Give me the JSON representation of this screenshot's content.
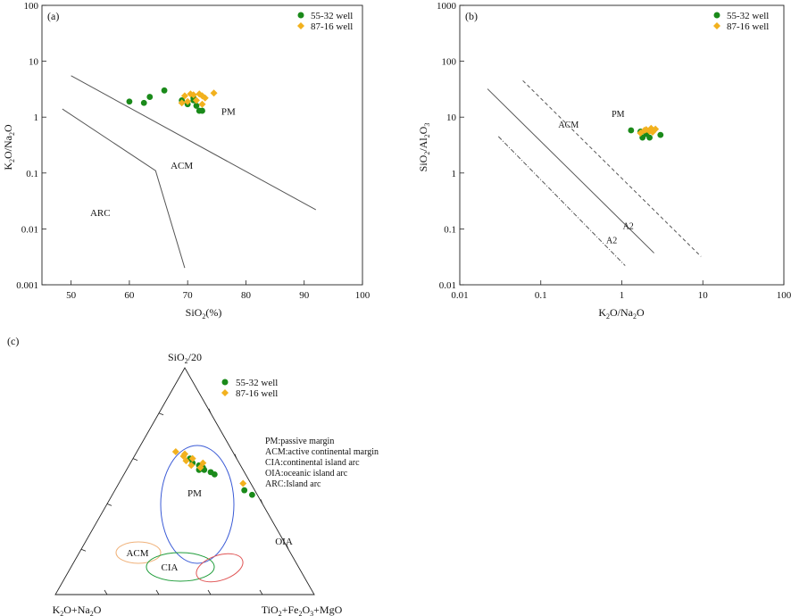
{
  "chart_data": [
    {
      "panel": "(a)",
      "type": "scatter",
      "xlabel": "SiO2(%)",
      "ylabel": "K2O/Na2O",
      "xlim": [
        45,
        100
      ],
      "ylim": [
        0.001,
        100
      ],
      "yscale": "log",
      "x_ticks": [
        "50",
        "60",
        "70",
        "80",
        "90",
        "100"
      ],
      "y_ticks": [
        "0.001",
        "0.01",
        "0.1",
        "1",
        "10",
        "100"
      ],
      "legend": [
        "55-32 well",
        "87-16 well"
      ],
      "legend_position": "top-right",
      "region_labels": [
        {
          "text": "PM",
          "x": 77,
          "y": 1.1
        },
        {
          "text": "ACM",
          "x": 69,
          "y": 0.12
        },
        {
          "text": "ARC",
          "x": 55,
          "y": 0.017
        }
      ],
      "boundaries": [
        [
          [
            50,
            5.5
          ],
          [
            92,
            0.022
          ]
        ],
        [
          [
            48.5,
            1.4
          ],
          [
            64.5,
            0.11
          ],
          [
            69.5,
            0.002
          ]
        ]
      ],
      "series": [
        {
          "name": "55-32 well",
          "color": "#1a8a1a",
          "marker": "circle",
          "points": [
            [
              60,
              1.9
            ],
            [
              62.5,
              1.8
            ],
            [
              63.5,
              2.3
            ],
            [
              66,
              3.0
            ],
            [
              69,
              2.0
            ],
            [
              70,
              1.7
            ],
            [
              71,
              2.2
            ],
            [
              71.5,
              1.6
            ],
            [
              72,
              1.3
            ],
            [
              72.5,
              1.3
            ],
            [
              71,
              2.0
            ]
          ]
        },
        {
          "name": "87-16 well",
          "color": "#f2b11e",
          "marker": "diamond",
          "points": [
            [
              69,
              1.8
            ],
            [
              69.5,
              2.4
            ],
            [
              70.5,
              2.6
            ],
            [
              71,
              2.5
            ],
            [
              71.5,
              2.0
            ],
            [
              72,
              2.6
            ],
            [
              72.5,
              2.4
            ],
            [
              73,
              2.2
            ],
            [
              72.5,
              1.7
            ],
            [
              74.5,
              2.7
            ],
            [
              70,
              1.9
            ]
          ]
        }
      ]
    },
    {
      "panel": "(b)",
      "type": "scatter",
      "xlabel": "K2O/Na2O",
      "ylabel": "SiO2/Al2O3",
      "xlim": [
        0.01,
        100
      ],
      "ylim": [
        0.01,
        1000
      ],
      "xscale": "log",
      "yscale": "log",
      "x_ticks": [
        "0.01",
        "0.1",
        "1",
        "10",
        "100"
      ],
      "y_ticks": [
        "0.01",
        "0.1",
        "1",
        "10",
        "100",
        "1000"
      ],
      "legend": [
        "55-32 well",
        "87-16 well"
      ],
      "legend_position": "top-right",
      "region_labels": [
        {
          "text": "PM",
          "x": 0.9,
          "y": 10
        },
        {
          "text": "ACM",
          "x": 0.22,
          "y": 6.5
        },
        {
          "text": "A2",
          "x": 1.2,
          "y": 0.1
        },
        {
          "text": "A2",
          "x": 0.75,
          "y": 0.055
        }
      ],
      "boundaries": [
        {
          "style": "solid",
          "points": [
            [
              0.022,
              32
            ],
            [
              2.5,
              0.037
            ]
          ]
        },
        {
          "style": "dashed",
          "points": [
            [
              0.06,
              45
            ],
            [
              9.5,
              0.032
            ]
          ]
        },
        {
          "style": "dashdot",
          "points": [
            [
              0.03,
              4.5
            ],
            [
              1.1,
              0.022
            ]
          ]
        }
      ],
      "series": [
        {
          "name": "55-32 well",
          "color": "#1a8a1a",
          "marker": "circle",
          "points": [
            [
              1.3,
              5.8
            ],
            [
              1.8,
              4.3
            ],
            [
              2.2,
              4.3
            ],
            [
              3.0,
              4.8
            ],
            [
              2.0,
              5.0
            ],
            [
              1.7,
              5.5
            ]
          ]
        },
        {
          "name": "87-16 well",
          "color": "#f2b11e",
          "marker": "diamond",
          "points": [
            [
              1.7,
              5.2
            ],
            [
              2.0,
              6.0
            ],
            [
              2.3,
              6.3
            ],
            [
              2.6,
              6.1
            ],
            [
              2.2,
              5.6
            ],
            [
              1.9,
              5.8
            ],
            [
              2.4,
              5.4
            ]
          ]
        }
      ]
    },
    {
      "panel": "(c)",
      "type": "ternary",
      "apex_labels": {
        "top": "SiO2/20",
        "left": "K2O+Na2O",
        "right": "TiO2+Fe2O3+MgO"
      },
      "legend": [
        "55-32 well",
        "87-16 well"
      ],
      "legend_position": "top-right",
      "notes": [
        "PM:passive margin",
        "ACM:active continental margin",
        "CIA:continental island arc",
        "OIA:oceanic island arc",
        "ARC:Island arc"
      ],
      "fields": [
        {
          "label": "PM",
          "color": "#3b5bd6"
        },
        {
          "label": "ACM",
          "color": "#f0b27a"
        },
        {
          "label": "CIA",
          "color": "#1f9d3a"
        },
        {
          "label": "OIA",
          "color": "#e05555"
        }
      ],
      "series": [
        {
          "name": "55-32 well",
          "color": "#1a8a1a",
          "marker": "circle",
          "points": [
            [
              0.58,
              0.18,
              0.24
            ],
            [
              0.6,
              0.18,
              0.22
            ],
            [
              0.57,
              0.16,
              0.27
            ],
            [
              0.56,
              0.15,
              0.29
            ],
            [
              0.55,
              0.15,
              0.3
            ],
            [
              0.53,
              0.12,
              0.35
            ],
            [
              0.54,
              0.13,
              0.33
            ],
            [
              0.46,
              0.04,
              0.5
            ],
            [
              0.44,
              0.02,
              0.54
            ],
            [
              0.55,
              0.17,
              0.28
            ]
          ]
        },
        {
          "name": "87-16 well",
          "color": "#f2b11e",
          "marker": "diamond",
          "points": [
            [
              0.63,
              0.22,
              0.15
            ],
            [
              0.61,
              0.2,
              0.19
            ],
            [
              0.62,
              0.19,
              0.19
            ],
            [
              0.6,
              0.17,
              0.23
            ],
            [
              0.59,
              0.2,
              0.21
            ],
            [
              0.57,
              0.19,
              0.24
            ],
            [
              0.56,
              0.16,
              0.28
            ],
            [
              0.49,
              0.03,
              0.48
            ],
            [
              0.58,
              0.14,
              0.28
            ]
          ]
        }
      ]
    }
  ]
}
